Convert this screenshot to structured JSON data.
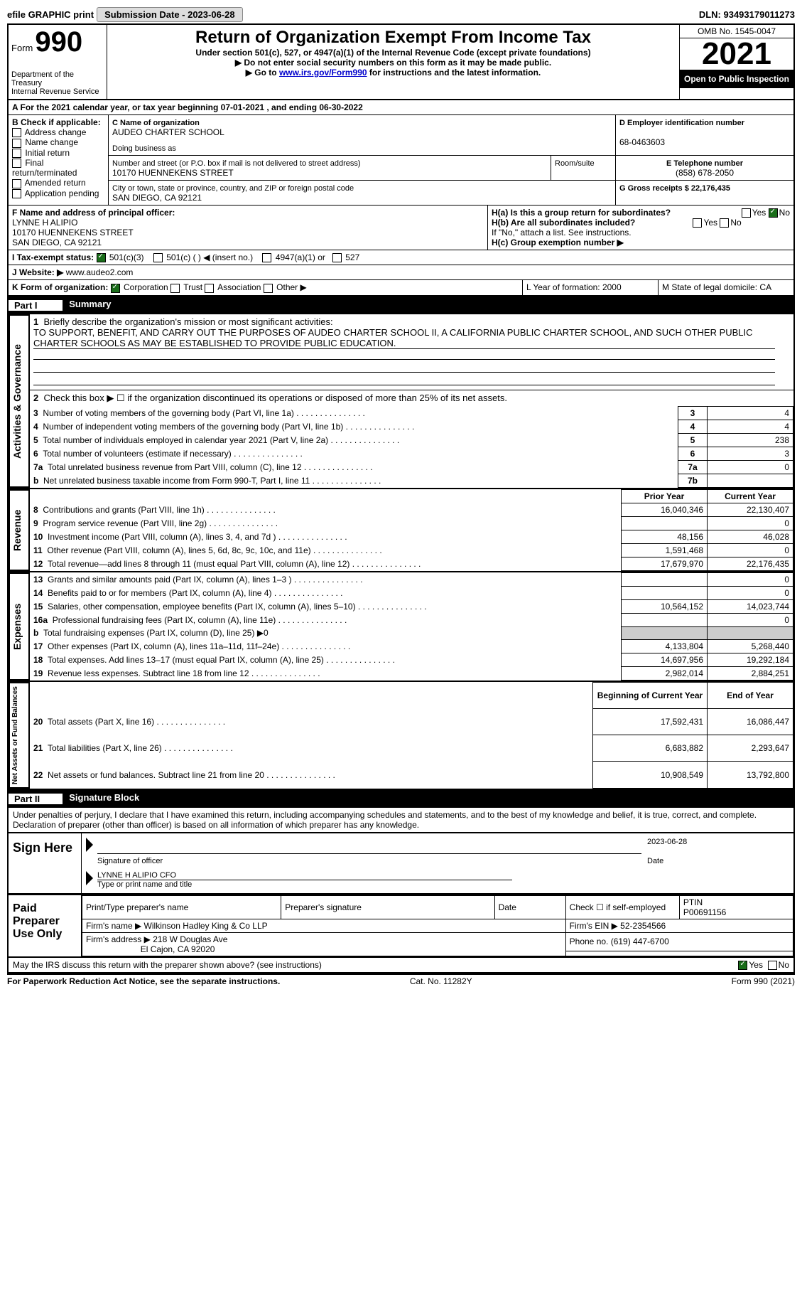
{
  "topbar": {
    "efile_label": "efile GRAPHIC print",
    "submission_label": "Submission Date - 2023-06-28",
    "dln_label": "DLN: 93493179011273"
  },
  "header": {
    "form_word": "Form",
    "form_num": "990",
    "dept": "Department of the Treasury",
    "irs": "Internal Revenue Service",
    "title": "Return of Organization Exempt From Income Tax",
    "sub1": "Under section 501(c), 527, or 4947(a)(1) of the Internal Revenue Code (except private foundations)",
    "sub2": "▶ Do not enter social security numbers on this form as it may be made public.",
    "sub3_pre": "▶ Go to ",
    "sub3_link": "www.irs.gov/Form990",
    "sub3_post": " for instructions and the latest information.",
    "omb": "OMB No. 1545-0047",
    "year": "2021",
    "open": "Open to Public Inspection"
  },
  "blockA": {
    "line": "A For the 2021 calendar year, or tax year beginning 07-01-2021   , and ending 06-30-2022",
    "b_label": "B Check if applicable:",
    "b_opts": [
      "Address change",
      "Name change",
      "Initial return",
      "Final return/terminated",
      "Amended return",
      "Application pending"
    ],
    "c_label": "C Name of organization",
    "c_value": "AUDEO CHARTER SCHOOL",
    "dba_label": "Doing business as",
    "addr_label": "Number and street (or P.O. box if mail is not delivered to street address)",
    "addr_value": "10170 HUENNEKENS STREET",
    "room_label": "Room/suite",
    "city_label": "City or town, state or province, country, and ZIP or foreign postal code",
    "city_value": "SAN DIEGO, CA  92121",
    "d_label": "D Employer identification number",
    "d_value": "68-0463603",
    "e_label": "E Telephone number",
    "e_value": "(858) 678-2050",
    "g_label": "G Gross receipts $ 22,176,435",
    "f_label": "F  Name and address of principal officer:",
    "f_name": "LYNNE H ALIPIO",
    "f_addr": "10170 HUENNEKENS STREET",
    "f_city": "SAN DIEGO, CA  92121",
    "ha_label": "H(a)  Is this a group return for subordinates?",
    "hb_label": "H(b)  Are all subordinates included?",
    "hb_note": "If \"No,\" attach a list. See instructions.",
    "hc_label": "H(c)  Group exemption number ▶",
    "yes": "Yes",
    "no": "No",
    "i_label": "I  Tax-exempt status:",
    "i_501c3": "501(c)(3)",
    "i_501c": "501(c) (  ) ◀ (insert no.)",
    "i_4947": "4947(a)(1) or",
    "i_527": "527",
    "j_label": "J  Website: ▶",
    "j_value": "www.audeo2.com",
    "k_label": "K Form of organization:",
    "k_opts": [
      "Corporation",
      "Trust",
      "Association",
      "Other ▶"
    ],
    "l_label": "L Year of formation: 2000",
    "m_label": "M State of legal domicile: CA"
  },
  "part1": {
    "label": "Part I",
    "title": "Summary",
    "mission_label": "Briefly describe the organization's mission or most significant activities:",
    "mission": "TO SUPPORT, BENEFIT, AND CARRY OUT THE PURPOSES OF AUDEO CHARTER SCHOOL II, A CALIFORNIA PUBLIC CHARTER SCHOOL, AND SUCH OTHER PUBLIC CHARTER SCHOOLS AS MAY BE ESTABLISHED TO PROVIDE PUBLIC EDUCATION.",
    "line2": "Check this box ▶ ☐  if the organization discontinued its operations or disposed of more than 25% of its net assets.",
    "rows_gov": [
      {
        "n": "3",
        "label": "Number of voting members of the governing body (Part VI, line 1a)",
        "box": "3",
        "val": "4"
      },
      {
        "n": "4",
        "label": "Number of independent voting members of the governing body (Part VI, line 1b)",
        "box": "4",
        "val": "4"
      },
      {
        "n": "5",
        "label": "Total number of individuals employed in calendar year 2021 (Part V, line 2a)",
        "box": "5",
        "val": "238"
      },
      {
        "n": "6",
        "label": "Total number of volunteers (estimate if necessary)",
        "box": "6",
        "val": "3"
      },
      {
        "n": "7a",
        "label": "Total unrelated business revenue from Part VIII, column (C), line 12",
        "box": "7a",
        "val": "0"
      },
      {
        "n": "b",
        "label": "Net unrelated business taxable income from Form 990-T, Part I, line 11",
        "box": "7b",
        "val": ""
      }
    ],
    "col_prior": "Prior Year",
    "col_current": "Current Year",
    "rows_rev": [
      {
        "n": "8",
        "label": "Contributions and grants (Part VIII, line 1h)",
        "p": "16,040,346",
        "c": "22,130,407"
      },
      {
        "n": "9",
        "label": "Program service revenue (Part VIII, line 2g)",
        "p": "",
        "c": "0"
      },
      {
        "n": "10",
        "label": "Investment income (Part VIII, column (A), lines 3, 4, and 7d )",
        "p": "48,156",
        "c": "46,028"
      },
      {
        "n": "11",
        "label": "Other revenue (Part VIII, column (A), lines 5, 6d, 8c, 9c, 10c, and 11e)",
        "p": "1,591,468",
        "c": "0"
      },
      {
        "n": "12",
        "label": "Total revenue—add lines 8 through 11 (must equal Part VIII, column (A), line 12)",
        "p": "17,679,970",
        "c": "22,176,435"
      }
    ],
    "rows_exp": [
      {
        "n": "13",
        "label": "Grants and similar amounts paid (Part IX, column (A), lines 1–3 )",
        "p": "",
        "c": "0"
      },
      {
        "n": "14",
        "label": "Benefits paid to or for members (Part IX, column (A), line 4)",
        "p": "",
        "c": "0"
      },
      {
        "n": "15",
        "label": "Salaries, other compensation, employee benefits (Part IX, column (A), lines 5–10)",
        "p": "10,564,152",
        "c": "14,023,744"
      },
      {
        "n": "16a",
        "label": "Professional fundraising fees (Part IX, column (A), line 11e)",
        "p": "",
        "c": "0"
      },
      {
        "n": "b",
        "label": "Total fundraising expenses (Part IX, column (D), line 25) ▶0",
        "p": "grey",
        "c": "grey"
      },
      {
        "n": "17",
        "label": "Other expenses (Part IX, column (A), lines 11a–11d, 11f–24e)",
        "p": "4,133,804",
        "c": "5,268,440"
      },
      {
        "n": "18",
        "label": "Total expenses. Add lines 13–17 (must equal Part IX, column (A), line 25)",
        "p": "14,697,956",
        "c": "19,292,184"
      },
      {
        "n": "19",
        "label": "Revenue less expenses. Subtract line 18 from line 12",
        "p": "2,982,014",
        "c": "2,884,251"
      }
    ],
    "col_begin": "Beginning of Current Year",
    "col_end": "End of Year",
    "rows_net": [
      {
        "n": "20",
        "label": "Total assets (Part X, line 16)",
        "p": "17,592,431",
        "c": "16,086,447"
      },
      {
        "n": "21",
        "label": "Total liabilities (Part X, line 26)",
        "p": "6,683,882",
        "c": "2,293,647"
      },
      {
        "n": "22",
        "label": "Net assets or fund balances. Subtract line 21 from line 20",
        "p": "10,908,549",
        "c": "13,792,800"
      }
    ],
    "side_gov": "Activities & Governance",
    "side_rev": "Revenue",
    "side_exp": "Expenses",
    "side_net": "Net Assets or Fund Balances"
  },
  "part2": {
    "label": "Part II",
    "title": "Signature Block",
    "perjury": "Under penalties of perjury, I declare that I have examined this return, including accompanying schedules and statements, and to the best of my knowledge and belief, it is true, correct, and complete. Declaration of preparer (other than officer) is based on all information of which preparer has any knowledge.",
    "sign_here": "Sign Here",
    "sig_label": "Signature of officer",
    "sig_date": "2023-06-28",
    "date_label": "Date",
    "name_title": "LYNNE H ALIPIO  CFO",
    "type_label": "Type or print name and title",
    "paid": "Paid Preparer Use Only",
    "prep_name_label": "Print/Type preparer's name",
    "prep_sig_label": "Preparer's signature",
    "check_self": "Check ☐ if self-employed",
    "ptin_label": "PTIN",
    "ptin": "P00691156",
    "firm_name_label": "Firm's name    ▶",
    "firm_name": "Wilkinson Hadley King & Co LLP",
    "firm_ein_label": "Firm's EIN ▶ 52-2354566",
    "firm_addr_label": "Firm's address ▶",
    "firm_addr": "218 W Douglas Ave",
    "firm_city": "El Cajon, CA  92020",
    "phone_label": "Phone no. (619) 447-6700",
    "discuss": "May the IRS discuss this return with the preparer shown above? (see instructions)"
  },
  "footer": {
    "left": "For Paperwork Reduction Act Notice, see the separate instructions.",
    "mid": "Cat. No. 11282Y",
    "right": "Form 990 (2021)"
  }
}
